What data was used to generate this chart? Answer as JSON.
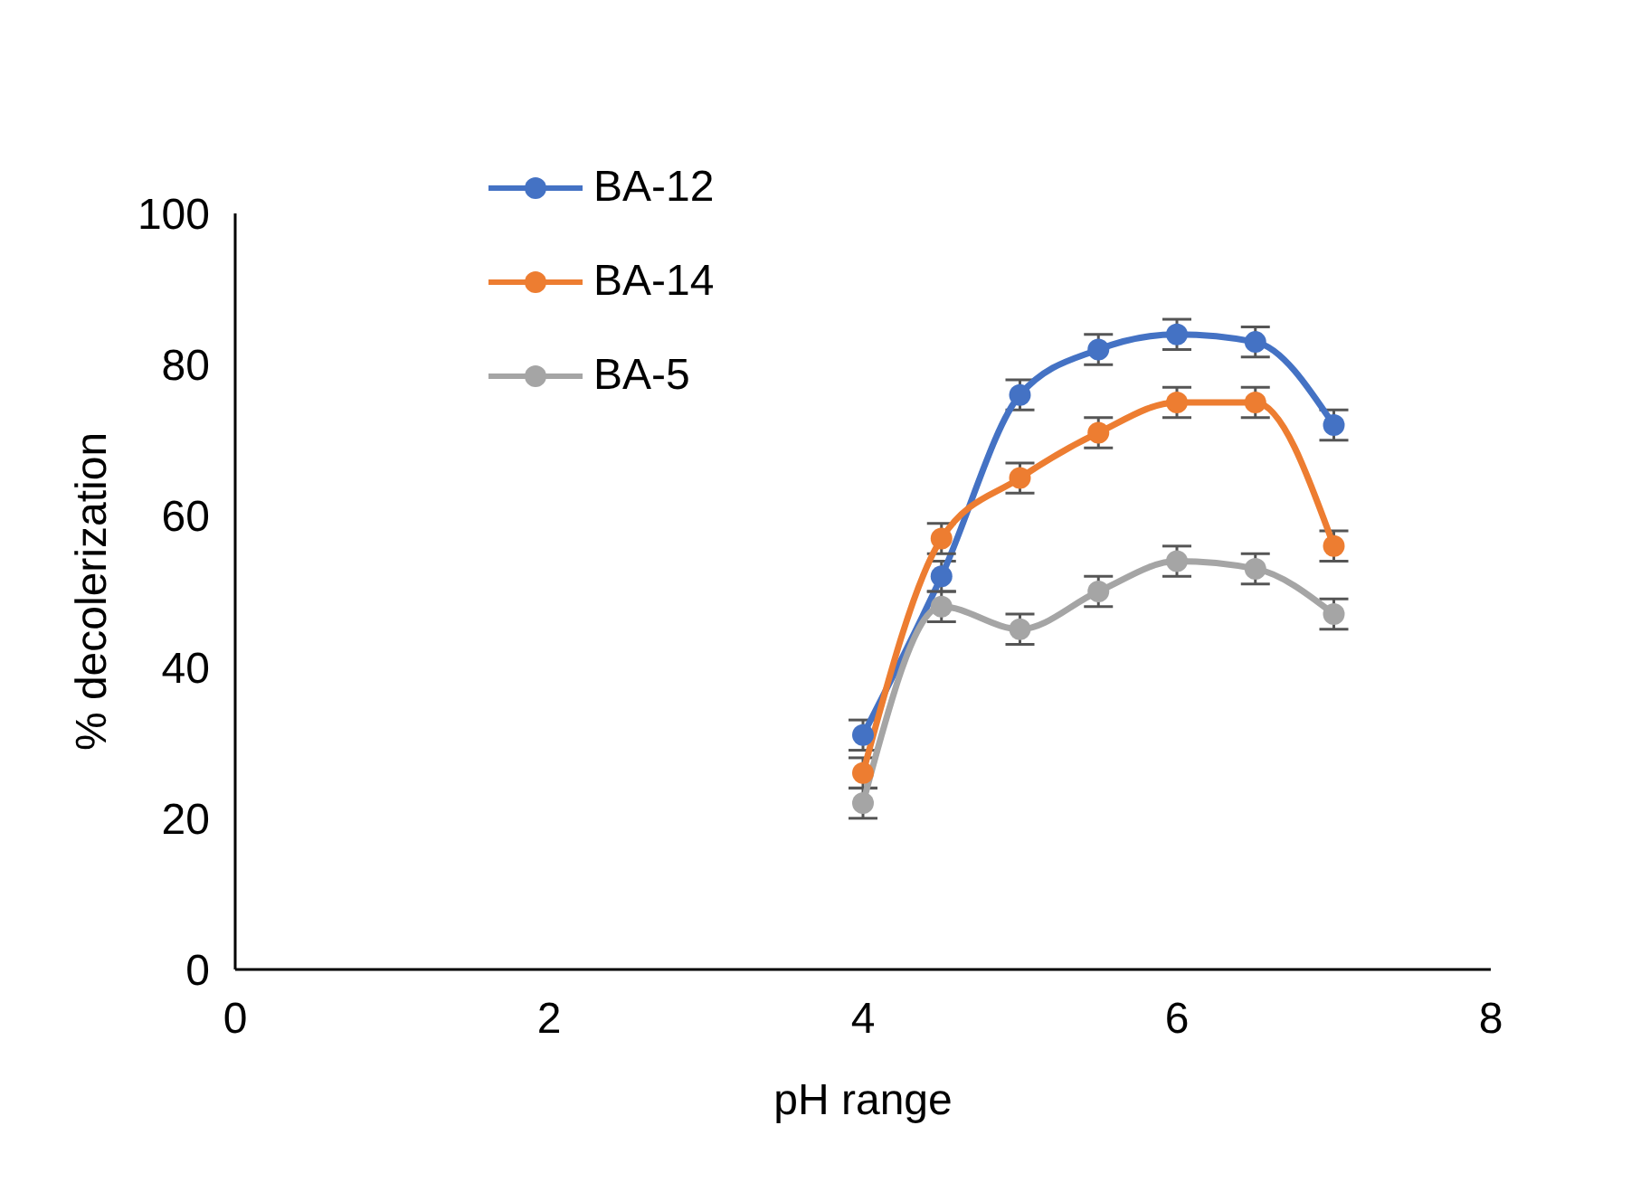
{
  "chart_data": {
    "type": "line",
    "xlabel": "pH range",
    "ylabel": "% decolerization",
    "xlim": [
      0,
      8
    ],
    "xticks": [
      0,
      2,
      4,
      6,
      8
    ],
    "ylim": [
      0,
      100
    ],
    "yticks": [
      0,
      20,
      40,
      60,
      80,
      100
    ],
    "grid": false,
    "legend": "top left",
    "marker": "circle",
    "line_style": "solid",
    "x": [
      4,
      4.5,
      5,
      5.5,
      6,
      6.5,
      7
    ],
    "series": [
      {
        "name": "BA-12",
        "color": "#4472c4",
        "values": [
          31,
          52,
          76,
          82,
          84,
          83,
          72
        ],
        "errors": [
          2,
          2,
          2,
          2,
          2,
          2,
          2
        ]
      },
      {
        "name": "BA-14",
        "color": "#ed7d31",
        "values": [
          26,
          57,
          65,
          71,
          75,
          75,
          56
        ],
        "errors": [
          2,
          2,
          2,
          2,
          2,
          2,
          2
        ]
      },
      {
        "name": "BA-5",
        "color": "#a5a5a5",
        "values": [
          22,
          48,
          45,
          50,
          54,
          53,
          47
        ],
        "errors": [
          2,
          2,
          2,
          2,
          2,
          2,
          2
        ]
      }
    ]
  }
}
